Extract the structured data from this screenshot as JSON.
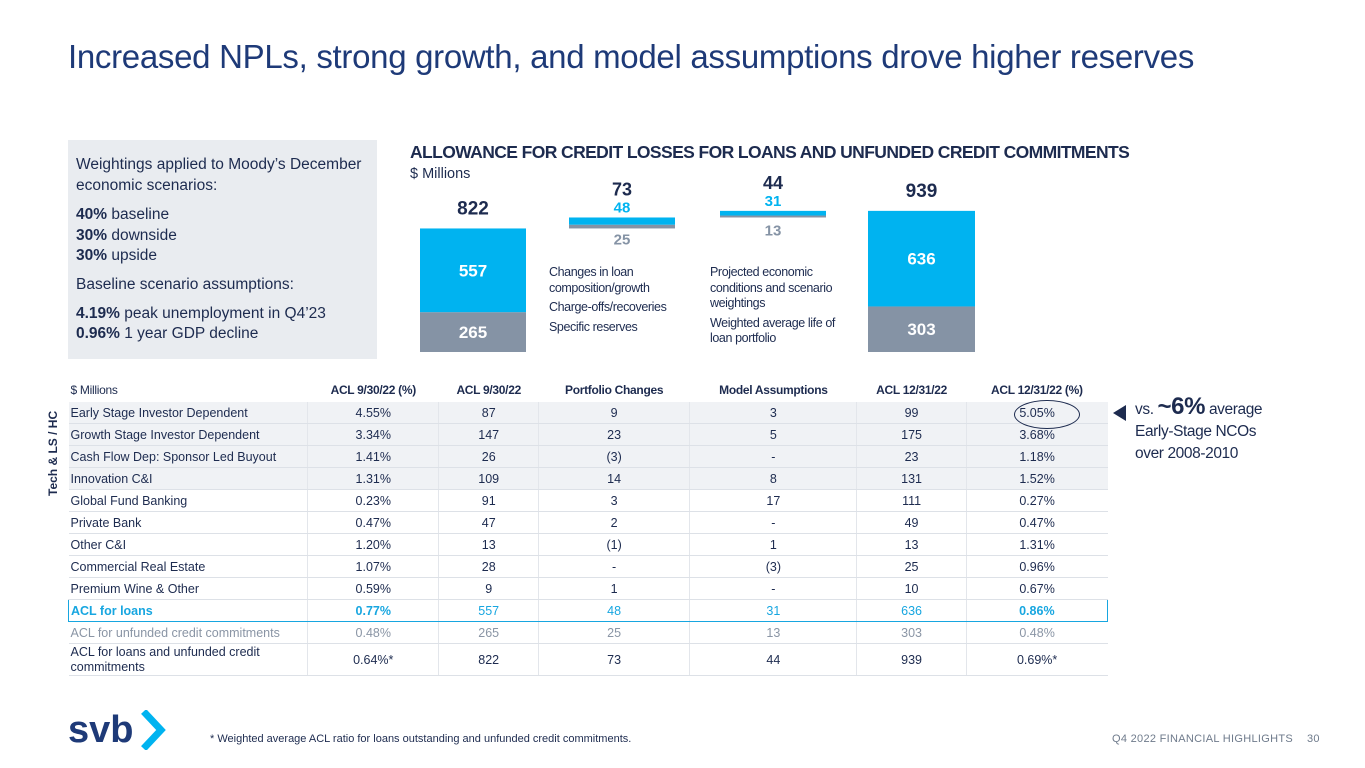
{
  "title": "Increased NPLs, strong growth, and model assumptions drove higher reserves",
  "side_panel": {
    "heading": "Weightings applied to Moody’s December economic scenarios:",
    "weightings": [
      {
        "pct": "40%",
        "label": " baseline"
      },
      {
        "pct": "30%",
        "label": " downside"
      },
      {
        "pct": "30%",
        "label": " upside"
      }
    ],
    "heading2": "Baseline scenario assumptions:",
    "baseline": [
      {
        "pct": "4.19%",
        "label": " peak unemployment in Q4’23"
      },
      {
        "pct": "0.96%",
        "label": " 1 year GDP decline"
      }
    ]
  },
  "chart_data": {
    "type": "bar",
    "title": "ALLOWANCE FOR CREDIT LOSSES FOR LOANS AND UNFUNDED CREDIT COMMITMENTS",
    "unit": "$ Millions",
    "series": [
      {
        "name": "ACL for loans",
        "values": [
          557,
          48,
          31,
          636
        ]
      },
      {
        "name": "ACL for unfunded credit commitments",
        "values": [
          265,
          25,
          13,
          303
        ]
      }
    ],
    "totals": [
      822,
      73,
      44,
      939
    ],
    "colors": {
      "loans": "#00b3f0",
      "unfunded": "#8593a5",
      "total_text": "#1d2b4f"
    },
    "legends": [
      [
        "Changes in loan composition/growth",
        "Charge-offs/recoveries",
        "Specific reserves"
      ],
      [
        "Projected economic conditions and scenario weightings",
        "Weighted average life of loan portfolio"
      ]
    ]
  },
  "table": {
    "unit_label": "$ Millions",
    "headers": [
      "ACL 9/30/22 (%)",
      "ACL 9/30/22",
      "Portfolio Changes",
      "Model Assumptions",
      "ACL 12/31/22",
      "ACL 12/31/22 (%)"
    ],
    "group_label": "Tech & LS / HC",
    "rows": [
      {
        "name": "Early Stage Investor Dependent",
        "cells": [
          "4.55%",
          "87",
          "9",
          "3",
          "99",
          "5.05%"
        ]
      },
      {
        "name": "Growth Stage Investor Dependent",
        "cells": [
          "3.34%",
          "147",
          "23",
          "5",
          "175",
          "3.68%"
        ]
      },
      {
        "name": "Cash Flow Dep: Sponsor Led Buyout",
        "cells": [
          "1.41%",
          "26",
          "(3)",
          "-",
          "23",
          "1.18%"
        ]
      },
      {
        "name": "Innovation C&I",
        "cells": [
          "1.31%",
          "109",
          "14",
          "8",
          "131",
          "1.52%"
        ]
      },
      {
        "name": "Global Fund Banking",
        "cells": [
          "0.23%",
          "91",
          "3",
          "17",
          "111",
          "0.27%"
        ]
      },
      {
        "name": "Private Bank",
        "cells": [
          "0.47%",
          "47",
          "2",
          "-",
          "49",
          "0.47%"
        ]
      },
      {
        "name": "Other C&I",
        "cells": [
          "1.20%",
          "13",
          "(1)",
          "1",
          "13",
          "1.31%"
        ]
      },
      {
        "name": "Commercial Real Estate",
        "cells": [
          "1.07%",
          "28",
          "-",
          "(3)",
          "25",
          "0.96%"
        ]
      },
      {
        "name": "Premium Wine & Other",
        "cells": [
          "0.59%",
          "9",
          "1",
          "-",
          "10",
          "0.67%"
        ]
      },
      {
        "name": "ACL for loans",
        "cells": [
          "0.77%",
          "557",
          "48",
          "31",
          "636",
          "0.86%"
        ]
      },
      {
        "name": "ACL for unfunded credit commitments",
        "cells": [
          "0.48%",
          "265",
          "25",
          "13",
          "303",
          "0.48%"
        ]
      },
      {
        "name": "ACL for loans and unfunded credit commitments",
        "cells": [
          "0.64%*",
          "822",
          "73",
          "44",
          "939",
          "0.69%*"
        ]
      }
    ]
  },
  "callout": {
    "prefix": "vs. ",
    "big": "~6%",
    "suffix": " average",
    "line2": "Early-Stage NCOs",
    "line3": "over 2008-2010"
  },
  "logo_text": "svb",
  "footnote": "* Weighted average ACL ratio for loans outstanding and unfunded credit commitments.",
  "footer": {
    "label": "Q4 2022 FINANCIAL HIGHLIGHTS",
    "page": "30"
  }
}
